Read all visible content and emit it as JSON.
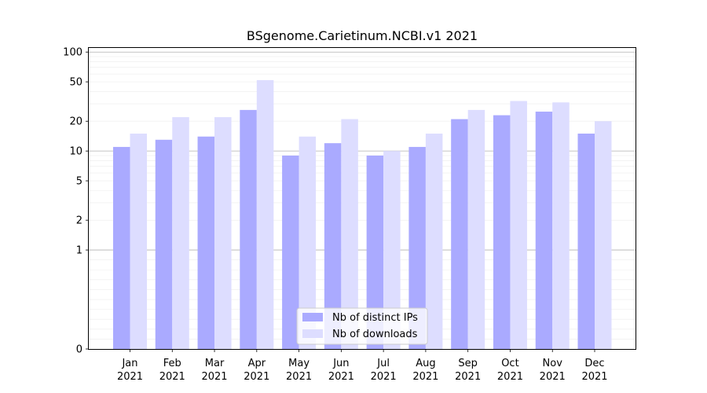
{
  "chart_data": {
    "type": "bar",
    "title": "BSgenome.Carietinum.NCBI.v1 2021",
    "categories": [
      "Jan",
      "Feb",
      "Mar",
      "Apr",
      "May",
      "Jun",
      "Jul",
      "Aug",
      "Sep",
      "Oct",
      "Nov",
      "Dec"
    ],
    "category_sublabel": "2021",
    "series": [
      {
        "name": "Nb of distinct IPs",
        "values": [
          11,
          13,
          14,
          26,
          9,
          12,
          9,
          11,
          21,
          23,
          25,
          15
        ],
        "color": "#aaaaff"
      },
      {
        "name": "Nb of downloads",
        "values": [
          15,
          22,
          22,
          52,
          14,
          21,
          10,
          15,
          26,
          32,
          31,
          20
        ],
        "color": "#ddddff"
      }
    ],
    "yscale": "symlog",
    "ylim": [
      0,
      110
    ],
    "yticks": [
      0,
      1,
      2,
      5,
      10,
      20,
      50,
      100
    ],
    "grid": true,
    "legend_position": "bottom-center"
  }
}
